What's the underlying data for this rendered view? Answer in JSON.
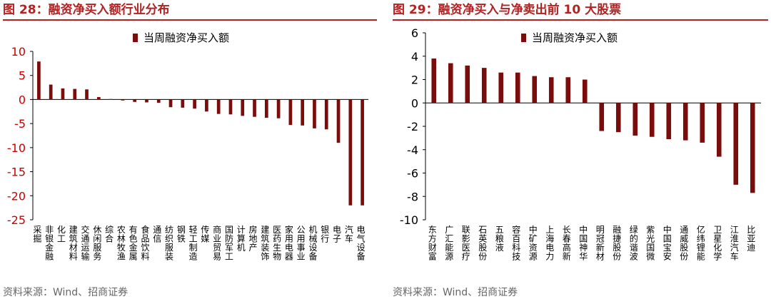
{
  "figures": [
    {
      "title": "图 28：融资净买入额行业分布",
      "source": "资料来源：Wind、招商证券"
    },
    {
      "title": "图 29：融资净买入与净卖出前 10 大股票",
      "source": "资料来源：Wind、招商证券"
    }
  ],
  "colors": {
    "bar": "#7b0c0c",
    "title": "#b22222",
    "axis_left": "#cc0000",
    "axis_right": "#000000"
  },
  "chart_data": [
    {
      "type": "bar",
      "title": "融资净买入额行业分布",
      "legend": "当周融资净买入额",
      "legend_position": "top-center",
      "xlabel": "",
      "ylabel": "",
      "ylim": [
        -25,
        10
      ],
      "yticks": [
        10,
        5,
        0,
        -5,
        -10,
        -15,
        -20,
        -25
      ],
      "categories": [
        "采掘",
        "非银金融",
        "化工",
        "建筑材料",
        "交通运输",
        "休闲服务",
        "综合",
        "农林牧渔",
        "有色金属",
        "食品饮料",
        "通信",
        "纺织服装",
        "钢铁",
        "轻工制造",
        "传媒",
        "商业贸易",
        "国防军工",
        "计算机",
        "房地产",
        "建筑装饰",
        "医药生物",
        "家用电器",
        "公用事业",
        "机械设备",
        "银行",
        "电子",
        "汽车",
        "电气设备"
      ],
      "values": [
        7.9,
        3.1,
        2.3,
        2.2,
        2.1,
        0.5,
        0.1,
        -0.2,
        -0.5,
        -0.6,
        -0.7,
        -1.6,
        -1.7,
        -1.9,
        -2.5,
        -3.0,
        -3.1,
        -3.4,
        -3.6,
        -3.8,
        -3.9,
        -5.3,
        -5.4,
        -6.0,
        -6.2,
        -9.0,
        -22.0,
        -22.0
      ]
    },
    {
      "type": "bar",
      "title": "融资净买入与净卖出前 10 大股票",
      "legend": "当周融资净买入额",
      "legend_position": "top-center",
      "xlabel": "",
      "ylabel": "",
      "ylim": [
        -10,
        6
      ],
      "yticks": [
        6,
        4,
        2,
        0,
        -2,
        -4,
        -6,
        -8,
        -10
      ],
      "categories": [
        "东方财富",
        "广汇能源",
        "联影医疗",
        "石英股份",
        "五粮液",
        "容百科技",
        "中矿资源",
        "上海电力",
        "长春高新",
        "中国神华",
        "明冠新材",
        "融捷股份",
        "绿的谐波",
        "紫光国微",
        "中国宝安",
        "通威股份",
        "亿纬锂能",
        "卫星化学",
        "江淮汽车",
        "比亚迪"
      ],
      "values": [
        3.8,
        3.4,
        3.2,
        3.0,
        2.6,
        2.6,
        2.3,
        2.2,
        2.2,
        2.0,
        -2.4,
        -2.5,
        -2.8,
        -2.9,
        -3.1,
        -3.2,
        -3.4,
        -4.6,
        -7.0,
        -7.7
      ]
    }
  ]
}
